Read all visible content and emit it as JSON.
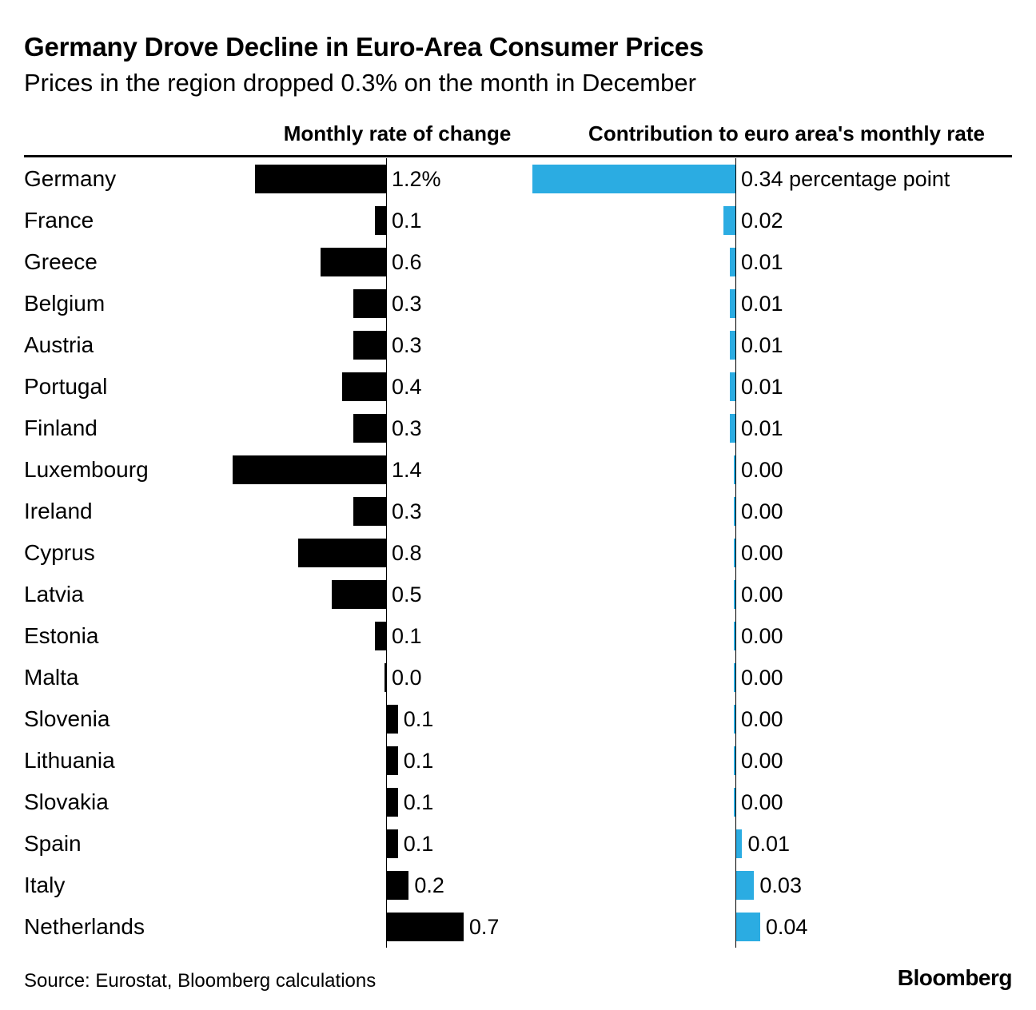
{
  "title": "Germany Drove Decline in Euro-Area Consumer Prices",
  "subtitle": "Prices in the region dropped 0.3% on the month in December",
  "headers": {
    "monthly": "Monthly rate of change",
    "contribution": "Contribution to euro area's monthly rate"
  },
  "footer": {
    "source": "Source: Eurostat, Bloomberg calculations",
    "brand": "Bloomberg"
  },
  "colors": {
    "monthly_bar": "#000000",
    "contribution_bar": "#2BACE2"
  },
  "chart_data": {
    "type": "bar",
    "orientation": "horizontal",
    "title": "Germany Drove Decline in Euro-Area Consumer Prices",
    "subtitle": "Prices in the region dropped 0.3% on the month in December",
    "legend_position": "column-headers",
    "grid": false,
    "categories": [
      "Germany",
      "France",
      "Greece",
      "Belgium",
      "Austria",
      "Portugal",
      "Finland",
      "Luxembourg",
      "Ireland",
      "Cyprus",
      "Latvia",
      "Estonia",
      "Malta",
      "Slovenia",
      "Lithuania",
      "Slovakia",
      "Spain",
      "Italy",
      "Netherlands"
    ],
    "series": [
      {
        "name": "Monthly rate of change",
        "unit": "percent",
        "axis_range": [
          -1.5,
          0.8
        ],
        "values": [
          -1.2,
          -0.1,
          -0.6,
          -0.3,
          -0.3,
          -0.4,
          -0.3,
          -1.4,
          -0.3,
          -0.8,
          -0.5,
          -0.1,
          0.0,
          0.1,
          0.1,
          0.1,
          0.1,
          0.2,
          0.7
        ],
        "labels": [
          "1.2%",
          "0.1",
          "0.6",
          "0.3",
          "0.3",
          "0.4",
          "0.3",
          "1.4",
          "0.3",
          "0.8",
          "0.5",
          "0.1",
          "0.0",
          "0.1",
          "0.1",
          "0.1",
          "0.1",
          "0.2",
          "0.7"
        ]
      },
      {
        "name": "Contribution to euro area's monthly rate",
        "unit": "percentage point",
        "axis_range": [
          -0.35,
          0.05
        ],
        "values": [
          -0.34,
          -0.02,
          -0.01,
          -0.01,
          -0.01,
          -0.01,
          -0.01,
          0.0,
          0.0,
          0.0,
          0.0,
          0.0,
          0.0,
          0.0,
          0.0,
          0.0,
          0.01,
          0.03,
          0.04
        ],
        "labels": [
          "0.34 percentage point",
          "0.02",
          "0.01",
          "0.01",
          "0.01",
          "0.01",
          "0.01",
          "0.00",
          "0.00",
          "0.00",
          "0.00",
          "0.00",
          "0.00",
          "0.00",
          "0.00",
          "0.00",
          "0.01",
          "0.03",
          "0.04"
        ]
      }
    ]
  }
}
